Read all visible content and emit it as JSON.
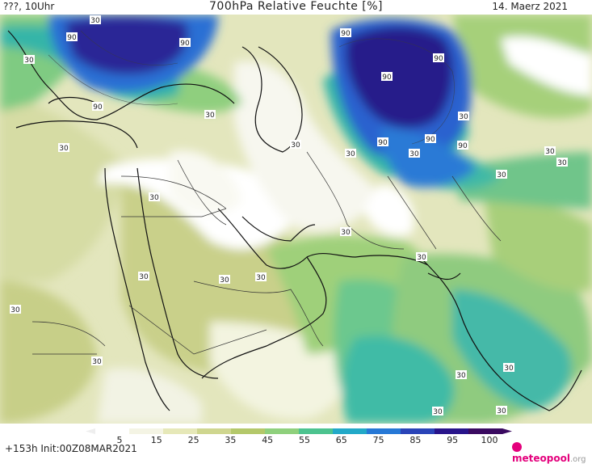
{
  "header": {
    "left": "???, 10Uhr",
    "title": "700hPa Relative Feuchte [%]",
    "date": "14. Maerz 2021"
  },
  "footer": {
    "run_info": "+153h Init:00Z08MAR2021",
    "brand": "meteopool",
    "brand_suffix": ".org"
  },
  "colorbar": {
    "ticks": [
      "5",
      "15",
      "25",
      "35",
      "45",
      "55",
      "65",
      "75",
      "85",
      "95",
      "100"
    ],
    "colors": [
      "#ffffff",
      "#f4f4e4",
      "#e6e8b8",
      "#cfd68f",
      "#b4c86a",
      "#8fd07c",
      "#4cc38f",
      "#22a9c8",
      "#2678d6",
      "#2a44b8",
      "#28148a",
      "#3a0a60"
    ]
  },
  "contour_labels": [
    "30",
    "90"
  ],
  "colors": {
    "very_dry": "#ffffff",
    "dry": "#e9ebc6",
    "dry_olive": "#cdd48f",
    "moist_green": "#7fcb82",
    "moist_teal": "#35b8a6",
    "wet_blue": "#2c73d5",
    "very_wet": "#2a1f8e",
    "brand": "#e4007c"
  }
}
